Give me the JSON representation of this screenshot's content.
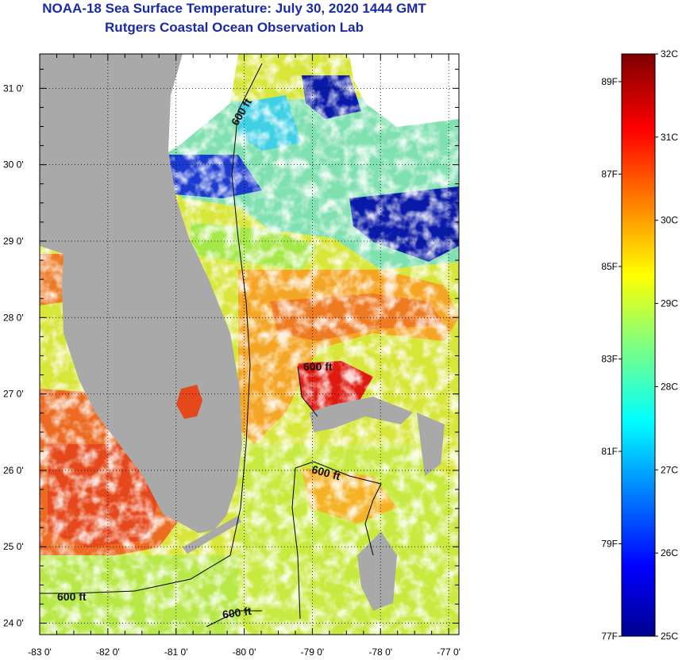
{
  "header": {
    "title": "NOAA-18 Sea Surface Temperature:  July 30, 2020 1444 GMT",
    "subtitle": "Rutgers Coastal Ocean Observation Lab"
  },
  "map": {
    "lat_labels": [
      "31 0'",
      "30 0'",
      "29 0'",
      "28 0'",
      "27 0'",
      "26 0'",
      "25 0'",
      "24 0'"
    ],
    "lon_labels": [
      "-83 0'",
      "-82 0'",
      "-81 0'",
      "-80 0'",
      "-79 0'",
      "-78 0'",
      "-77 0'"
    ],
    "lat_range": [
      23.85,
      31.45
    ],
    "lon_range": [
      -83.0,
      -76.85
    ],
    "isobath_label": "600 ft",
    "colors": {
      "land": "#a9a9a9",
      "warm": "#e8501a",
      "hot": "#e01a10",
      "mid": "#f5d21a",
      "cool": "#a6e84a",
      "cyan": "#3fd0e6",
      "cold": "#0a1aa8"
    }
  },
  "colorbar": {
    "min_c": 25,
    "max_c": 32,
    "celsius_labels": [
      "32C",
      "31C",
      "30C",
      "29C",
      "28C",
      "27C",
      "26C",
      "25C"
    ],
    "fahrenheit_labels": [
      "89F",
      "87F",
      "85F",
      "83F",
      "81F",
      "79F",
      "77F"
    ],
    "fahrenheit_values": [
      89,
      87,
      85,
      83,
      81,
      79,
      77
    ]
  }
}
